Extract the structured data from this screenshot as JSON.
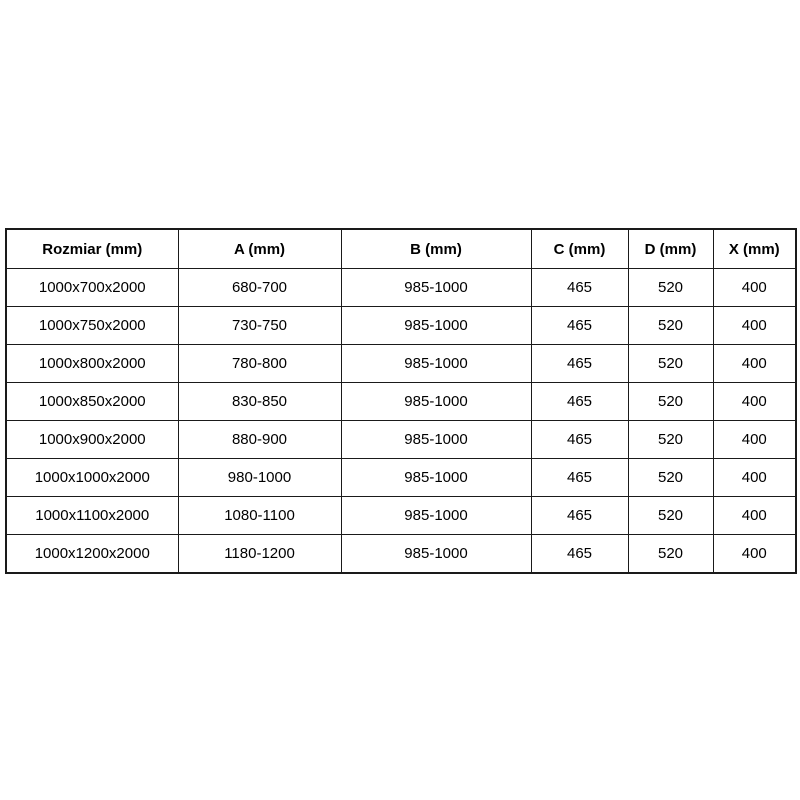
{
  "page": {
    "background_color": "#ffffff",
    "border_color": "#1a1a1a",
    "text_color": "#000000"
  },
  "table": {
    "columns": [
      "Rozmiar (mm)",
      "A (mm)",
      "B (mm)",
      "C (mm)",
      "D (mm)",
      "X (mm)"
    ],
    "rows": [
      [
        "1000x700x2000",
        "680-700",
        "985-1000",
        "465",
        "520",
        "400"
      ],
      [
        "1000x750x2000",
        "730-750",
        "985-1000",
        "465",
        "520",
        "400"
      ],
      [
        "1000x800x2000",
        "780-800",
        "985-1000",
        "465",
        "520",
        "400"
      ],
      [
        "1000x850x2000",
        "830-850",
        "985-1000",
        "465",
        "520",
        "400"
      ],
      [
        "1000x900x2000",
        "880-900",
        "985-1000",
        "465",
        "520",
        "400"
      ],
      [
        "1000x1000x2000",
        "980-1000",
        "985-1000",
        "465",
        "520",
        "400"
      ],
      [
        "1000x1100x2000",
        "1080-1100",
        "985-1000",
        "465",
        "520",
        "400"
      ],
      [
        "1000x1200x2000",
        "1180-1200",
        "985-1000",
        "465",
        "520",
        "400"
      ]
    ]
  }
}
